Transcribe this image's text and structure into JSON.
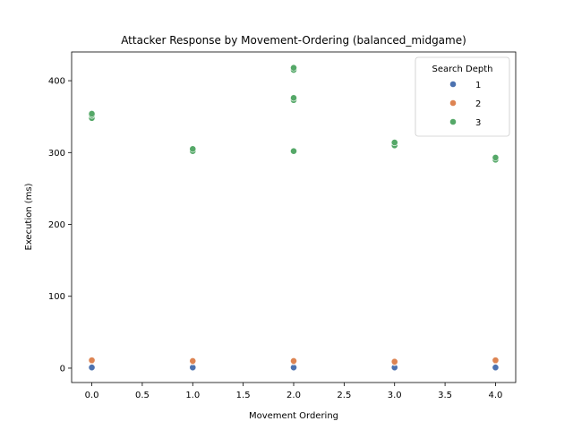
{
  "chart_data": {
    "type": "scatter",
    "title": "Attacker Response by Movement-Ordering (balanced_midgame)",
    "xlabel": "Movement Ordering",
    "ylabel": "Execution (ms)",
    "xlim": [
      -0.2,
      4.2
    ],
    "ylim": [
      -20,
      440
    ],
    "x_ticks": [
      "0.0",
      "0.5",
      "1.0",
      "1.5",
      "2.0",
      "2.5",
      "3.0",
      "3.5",
      "4.0"
    ],
    "x_tick_values": [
      0,
      0.5,
      1,
      1.5,
      2,
      2.5,
      3,
      3.5,
      4
    ],
    "y_ticks": [
      "0",
      "100",
      "200",
      "300",
      "400"
    ],
    "y_tick_values": [
      0,
      100,
      200,
      300,
      400
    ],
    "grid": false,
    "legend": {
      "title": "Search Depth",
      "placement": "top-right"
    },
    "series": [
      {
        "name": "1",
        "color": "#4c72b0",
        "points": [
          {
            "x": 0,
            "y": 0.5
          },
          {
            "x": 0,
            "y": 1
          },
          {
            "x": 1,
            "y": 0.5
          },
          {
            "x": 1,
            "y": 1
          },
          {
            "x": 2,
            "y": 0.5
          },
          {
            "x": 2,
            "y": 1
          },
          {
            "x": 3,
            "y": 0.5
          },
          {
            "x": 3,
            "y": 1
          },
          {
            "x": 4,
            "y": 0.5
          },
          {
            "x": 4,
            "y": 1
          }
        ]
      },
      {
        "name": "2",
        "color": "#dd8452",
        "points": [
          {
            "x": 0,
            "y": 10
          },
          {
            "x": 0,
            "y": 11
          },
          {
            "x": 1,
            "y": 9
          },
          {
            "x": 1,
            "y": 10
          },
          {
            "x": 2,
            "y": 9
          },
          {
            "x": 2,
            "y": 10
          },
          {
            "x": 3,
            "y": 8
          },
          {
            "x": 3,
            "y": 9
          },
          {
            "x": 4,
            "y": 10
          },
          {
            "x": 4,
            "y": 11
          }
        ]
      },
      {
        "name": "3",
        "color": "#55a868",
        "points": [
          {
            "x": 0,
            "y": 348
          },
          {
            "x": 0,
            "y": 352
          },
          {
            "x": 0,
            "y": 354
          },
          {
            "x": 1,
            "y": 302
          },
          {
            "x": 1,
            "y": 305
          },
          {
            "x": 2,
            "y": 302
          },
          {
            "x": 2,
            "y": 373
          },
          {
            "x": 2,
            "y": 376
          },
          {
            "x": 2,
            "y": 415
          },
          {
            "x": 2,
            "y": 418
          },
          {
            "x": 3,
            "y": 310
          },
          {
            "x": 3,
            "y": 314
          },
          {
            "x": 4,
            "y": 290
          },
          {
            "x": 4,
            "y": 293
          }
        ]
      }
    ]
  }
}
